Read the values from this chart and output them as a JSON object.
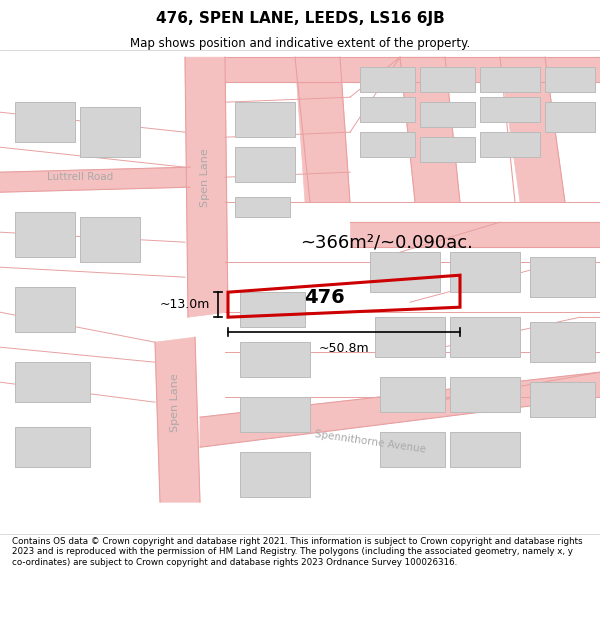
{
  "title": "476, SPEN LANE, LEEDS, LS16 6JB",
  "subtitle": "Map shows position and indicative extent of the property.",
  "footer": "Contains OS data © Crown copyright and database right 2021. This information is subject to Crown copyright and database rights 2023 and is reproduced with the permission of HM Land Registry. The polygons (including the associated geometry, namely x, y co-ordinates) are subject to Crown copyright and database rights 2023 Ordnance Survey 100026316.",
  "area_label": "~366m²/~0.090ac.",
  "plot_label": "476",
  "dim_width": "~50.8m",
  "dim_height": "~13.0m",
  "background_color": "#ffffff",
  "map_bg_color": "#ffffff",
  "road_color": "#f5c0c0",
  "road_fill_color": "#f5c0c0",
  "building_color": "#d4d4d4",
  "plot_outline_color": "#cc0000",
  "road_line_color": "#e8a0a0",
  "label_color_road": "#aaaaaa",
  "label_color_black": "#000000"
}
